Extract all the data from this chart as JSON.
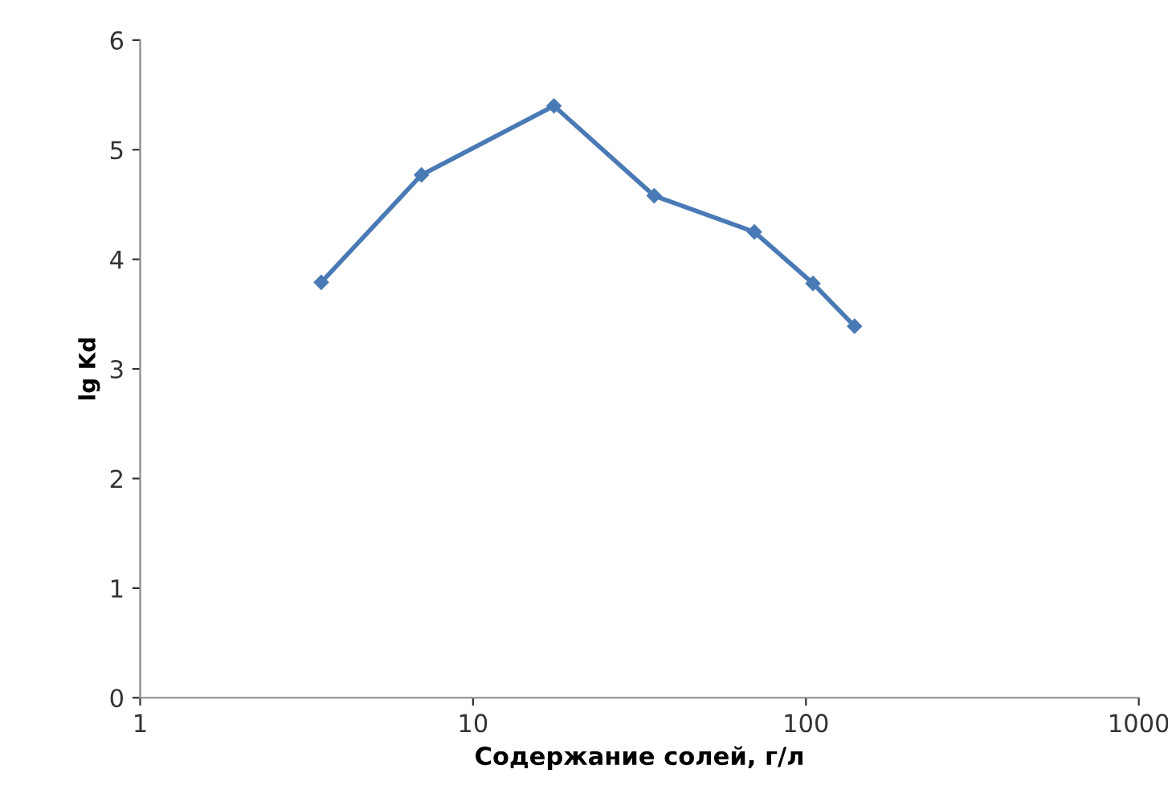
{
  "chart_data": {
    "type": "line",
    "xlabel": "Содержание солей, г/л",
    "ylabel": "lg Kd",
    "log": "x",
    "x": [
      3.5,
      7,
      17.5,
      35,
      70,
      105,
      140
    ],
    "series": [
      {
        "color": "#4a7ab5",
        "values": [
          3.79,
          4.77,
          5.4,
          4.58,
          4.25,
          3.78,
          3.39
        ]
      }
    ],
    "xlim": [
      1,
      1000
    ],
    "xticks": [
      1,
      10,
      100,
      1000
    ],
    "ylim": [
      0,
      6
    ],
    "yticks": [
      0,
      1,
      2,
      3,
      4,
      5,
      6
    ],
    "marker": "diamond",
    "line_style": "solid",
    "grid": false,
    "legend": false
  }
}
